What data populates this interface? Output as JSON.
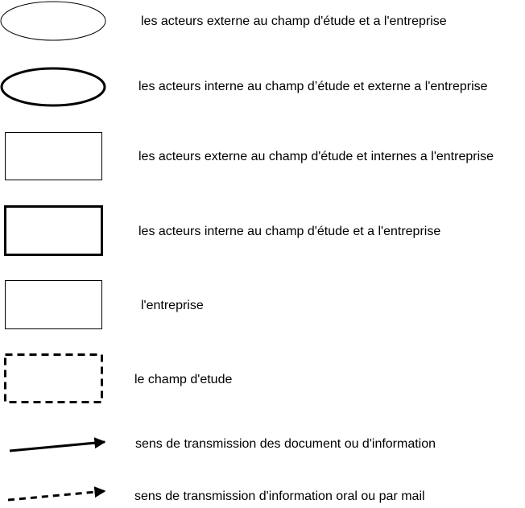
{
  "stroke_color": "#000000",
  "legend": {
    "items": [
      {
        "symbol": "thin-ellipse",
        "label": "les acteurs externe au champ d'étude et a l'entreprise"
      },
      {
        "symbol": "thick-ellipse",
        "label": "les acteurs interne au champ d’étude et externe a l'entreprise"
      },
      {
        "symbol": "thin-rectangle",
        "label": "les acteurs externe au champ d'étude et internes a l'entreprise"
      },
      {
        "symbol": "thick-rectangle",
        "label": "les acteurs interne au champ d'étude et a l'entreprise"
      },
      {
        "symbol": "plain-rectangle",
        "label": "l'entreprise"
      },
      {
        "symbol": "dashed-rectangle",
        "label": "le champ d'etude"
      },
      {
        "symbol": "solid-arrow",
        "label": "sens de transmission des document ou d'information"
      },
      {
        "symbol": "dashed-arrow",
        "label": "sens de transmission  d'information oral ou par mail"
      }
    ]
  }
}
